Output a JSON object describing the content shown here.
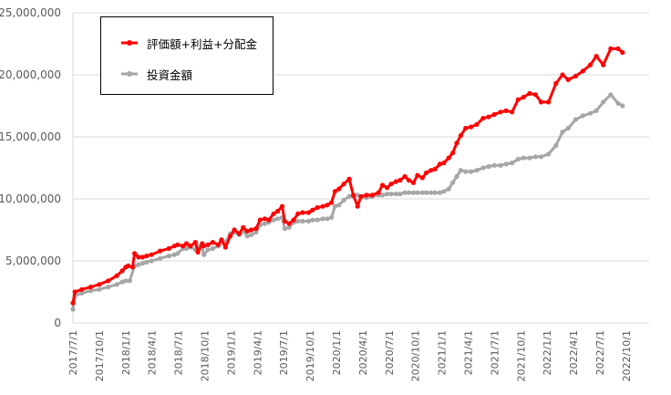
{
  "chart_data": {
    "type": "line",
    "title": "",
    "xlabel": "",
    "ylabel": "",
    "ylim": [
      0,
      25000000
    ],
    "ytick_labels": [
      "0",
      "5,000,000",
      "10,000,000",
      "15,000,000",
      "20,000,000",
      "25,000,000"
    ],
    "ytick_values": [
      0,
      5000000,
      10000000,
      15000000,
      20000000,
      25000000
    ],
    "xtick_labels": [
      "2017/7/1",
      "2017/10/1",
      "2018/1/1",
      "2018/4/1",
      "2018/7/1",
      "2018/10/1",
      "2019/1/1",
      "2019/4/1",
      "2019/7/1",
      "2019/10/1",
      "2020/1/1",
      "2020/4/1",
      "2020/7/1",
      "2020/10/1",
      "2021/1/1",
      "2021/4/1",
      "2021/7/1",
      "2021/10/1",
      "2022/1/1",
      "2022/4/1",
      "2022/7/1",
      "2022/10/1"
    ],
    "x_start": "2017-07-01",
    "x_end": "2023-01-01",
    "grid": true,
    "legend": "top-left",
    "series": [
      {
        "name": "評価額+利益+分配金",
        "color": "#ff0000",
        "points": [
          [
            "2017-07-01",
            1600000
          ],
          [
            "2017-07-08",
            2500000
          ],
          [
            "2017-08-01",
            2700000
          ],
          [
            "2017-09-01",
            2900000
          ],
          [
            "2017-10-01",
            3100000
          ],
          [
            "2017-11-01",
            3400000
          ],
          [
            "2017-12-01",
            3800000
          ],
          [
            "2017-12-20",
            4200000
          ],
          [
            "2018-01-01",
            4500000
          ],
          [
            "2018-01-10",
            4600000
          ],
          [
            "2018-01-25",
            4500000
          ],
          [
            "2018-02-01",
            5600000
          ],
          [
            "2018-02-15",
            5300000
          ],
          [
            "2018-03-01",
            5300000
          ],
          [
            "2018-03-15",
            5400000
          ],
          [
            "2018-04-01",
            5500000
          ],
          [
            "2018-05-01",
            5800000
          ],
          [
            "2018-06-01",
            6000000
          ],
          [
            "2018-06-20",
            6200000
          ],
          [
            "2018-07-01",
            6300000
          ],
          [
            "2018-07-20",
            6200000
          ],
          [
            "2018-08-01",
            6400000
          ],
          [
            "2018-08-15",
            6200000
          ],
          [
            "2018-09-01",
            6500000
          ],
          [
            "2018-09-10",
            5700000
          ],
          [
            "2018-09-25",
            6400000
          ],
          [
            "2018-10-01",
            6200000
          ],
          [
            "2018-10-15",
            6300000
          ],
          [
            "2018-11-01",
            6500000
          ],
          [
            "2018-11-20",
            6300000
          ],
          [
            "2018-12-01",
            6700000
          ],
          [
            "2018-12-15",
            6100000
          ],
          [
            "2019-01-01",
            7000000
          ],
          [
            "2019-01-15",
            7500000
          ],
          [
            "2019-02-01",
            7200000
          ],
          [
            "2019-02-15",
            7700000
          ],
          [
            "2019-03-01",
            7400000
          ],
          [
            "2019-03-15",
            7500000
          ],
          [
            "2019-04-01",
            7600000
          ],
          [
            "2019-04-15",
            8300000
          ],
          [
            "2019-05-01",
            8400000
          ],
          [
            "2019-05-15",
            8300000
          ],
          [
            "2019-06-01",
            8800000
          ],
          [
            "2019-06-15",
            9000000
          ],
          [
            "2019-07-01",
            9400000
          ],
          [
            "2019-07-10",
            8200000
          ],
          [
            "2019-07-25",
            8000000
          ],
          [
            "2019-08-10",
            8300000
          ],
          [
            "2019-08-25",
            8800000
          ],
          [
            "2019-09-10",
            8900000
          ],
          [
            "2019-10-01",
            8900000
          ],
          [
            "2019-10-15",
            9100000
          ],
          [
            "2019-11-01",
            9300000
          ],
          [
            "2019-11-20",
            9400000
          ],
          [
            "2019-12-05",
            9500000
          ],
          [
            "2019-12-20",
            9700000
          ],
          [
            "2020-01-01",
            10600000
          ],
          [
            "2020-01-15",
            10800000
          ],
          [
            "2020-02-01",
            11200000
          ],
          [
            "2020-02-20",
            11600000
          ],
          [
            "2020-03-05",
            10300000
          ],
          [
            "2020-03-20",
            9400000
          ],
          [
            "2020-04-01",
            10200000
          ],
          [
            "2020-04-20",
            10300000
          ],
          [
            "2020-05-10",
            10300000
          ],
          [
            "2020-06-01",
            10500000
          ],
          [
            "2020-06-15",
            11100000
          ],
          [
            "2020-07-01",
            10900000
          ],
          [
            "2020-07-15",
            11200000
          ],
          [
            "2020-08-01",
            11400000
          ],
          [
            "2020-08-15",
            11500000
          ],
          [
            "2020-09-01",
            11800000
          ],
          [
            "2020-09-15",
            11500000
          ],
          [
            "2020-10-01",
            11300000
          ],
          [
            "2020-10-15",
            11900000
          ],
          [
            "2020-11-01",
            11700000
          ],
          [
            "2020-11-15",
            12100000
          ],
          [
            "2020-12-01",
            12300000
          ],
          [
            "2020-12-15",
            12400000
          ],
          [
            "2021-01-01",
            12800000
          ],
          [
            "2021-01-15",
            12900000
          ],
          [
            "2021-02-01",
            13300000
          ],
          [
            "2021-02-15",
            13700000
          ],
          [
            "2021-03-01",
            14500000
          ],
          [
            "2021-03-15",
            15100000
          ],
          [
            "2021-04-01",
            15700000
          ],
          [
            "2021-04-20",
            15800000
          ],
          [
            "2021-05-10",
            16000000
          ],
          [
            "2021-06-01",
            16500000
          ],
          [
            "2021-06-20",
            16600000
          ],
          [
            "2021-07-10",
            16800000
          ],
          [
            "2021-08-01",
            17000000
          ],
          [
            "2021-08-20",
            17100000
          ],
          [
            "2021-09-10",
            17000000
          ],
          [
            "2021-10-01",
            18000000
          ],
          [
            "2021-10-20",
            18200000
          ],
          [
            "2021-11-10",
            18500000
          ],
          [
            "2021-12-01",
            18400000
          ],
          [
            "2021-12-20",
            17800000
          ],
          [
            "2022-01-15",
            17800000
          ],
          [
            "2022-02-10",
            19300000
          ],
          [
            "2022-03-05",
            20000000
          ],
          [
            "2022-03-25",
            19600000
          ],
          [
            "2022-04-20",
            19900000
          ],
          [
            "2022-05-15",
            20300000
          ],
          [
            "2022-06-10",
            20800000
          ],
          [
            "2022-07-01",
            21500000
          ],
          [
            "2022-07-25",
            20800000
          ],
          [
            "2022-08-20",
            22100000
          ],
          [
            "2022-09-15",
            22100000
          ],
          [
            "2022-09-30",
            21800000
          ]
        ]
      },
      {
        "name": "投資金額",
        "color": "#a6a6a6",
        "points": [
          [
            "2017-07-01",
            1100000
          ],
          [
            "2017-07-08",
            2200000
          ],
          [
            "2017-08-01",
            2400000
          ],
          [
            "2017-09-01",
            2600000
          ],
          [
            "2017-10-01",
            2700000
          ],
          [
            "2017-11-01",
            2900000
          ],
          [
            "2017-12-01",
            3100000
          ],
          [
            "2017-12-20",
            3300000
          ],
          [
            "2018-01-01",
            3400000
          ],
          [
            "2018-01-15",
            3400000
          ],
          [
            "2018-02-01",
            4600000
          ],
          [
            "2018-02-15",
            4700000
          ],
          [
            "2018-03-01",
            4800000
          ],
          [
            "2018-03-15",
            4900000
          ],
          [
            "2018-04-01",
            5000000
          ],
          [
            "2018-05-01",
            5200000
          ],
          [
            "2018-06-01",
            5400000
          ],
          [
            "2018-06-20",
            5500000
          ],
          [
            "2018-07-01",
            5600000
          ],
          [
            "2018-07-20",
            6000000
          ],
          [
            "2018-08-01",
            6000000
          ],
          [
            "2018-08-15",
            6100000
          ],
          [
            "2018-09-01",
            5900000
          ],
          [
            "2018-09-10",
            6200000
          ],
          [
            "2018-09-25",
            6000000
          ],
          [
            "2018-10-01",
            5500000
          ],
          [
            "2018-10-15",
            5900000
          ],
          [
            "2018-11-01",
            6000000
          ],
          [
            "2018-11-20",
            6200000
          ],
          [
            "2018-12-01",
            6700000
          ],
          [
            "2018-12-15",
            6500000
          ],
          [
            "2019-01-01",
            7200000
          ],
          [
            "2019-01-15",
            7300000
          ],
          [
            "2019-02-01",
            7100000
          ],
          [
            "2019-02-15",
            7400000
          ],
          [
            "2019-03-01",
            7000000
          ],
          [
            "2019-03-15",
            7100000
          ],
          [
            "2019-04-01",
            7300000
          ],
          [
            "2019-04-15",
            7900000
          ],
          [
            "2019-05-01",
            8000000
          ],
          [
            "2019-05-15",
            8100000
          ],
          [
            "2019-06-01",
            8300000
          ],
          [
            "2019-06-15",
            8400000
          ],
          [
            "2019-07-01",
            8500000
          ],
          [
            "2019-07-10",
            7600000
          ],
          [
            "2019-07-25",
            7700000
          ],
          [
            "2019-08-10",
            8100000
          ],
          [
            "2019-08-25",
            8200000
          ],
          [
            "2019-09-10",
            8200000
          ],
          [
            "2019-10-01",
            8200000
          ],
          [
            "2019-10-15",
            8300000
          ],
          [
            "2019-11-01",
            8300000
          ],
          [
            "2019-11-20",
            8400000
          ],
          [
            "2019-12-05",
            8400000
          ],
          [
            "2019-12-20",
            8500000
          ],
          [
            "2020-01-01",
            9400000
          ],
          [
            "2020-01-15",
            9500000
          ],
          [
            "2020-02-01",
            9900000
          ],
          [
            "2020-02-20",
            10200000
          ],
          [
            "2020-03-05",
            10200000
          ],
          [
            "2020-03-20",
            10300000
          ],
          [
            "2020-04-01",
            10100000
          ],
          [
            "2020-04-20",
            10100000
          ],
          [
            "2020-05-10",
            10200000
          ],
          [
            "2020-06-01",
            10300000
          ],
          [
            "2020-06-15",
            10300000
          ],
          [
            "2020-07-01",
            10400000
          ],
          [
            "2020-07-15",
            10400000
          ],
          [
            "2020-08-01",
            10400000
          ],
          [
            "2020-08-15",
            10400000
          ],
          [
            "2020-09-01",
            10500000
          ],
          [
            "2020-09-15",
            10500000
          ],
          [
            "2020-10-01",
            10500000
          ],
          [
            "2020-10-15",
            10500000
          ],
          [
            "2020-11-01",
            10500000
          ],
          [
            "2020-11-15",
            10500000
          ],
          [
            "2020-12-01",
            10500000
          ],
          [
            "2020-12-15",
            10500000
          ],
          [
            "2021-01-01",
            10500000
          ],
          [
            "2021-01-15",
            10600000
          ],
          [
            "2021-02-01",
            10800000
          ],
          [
            "2021-02-15",
            11300000
          ],
          [
            "2021-03-01",
            11800000
          ],
          [
            "2021-03-15",
            12300000
          ],
          [
            "2021-04-01",
            12200000
          ],
          [
            "2021-04-20",
            12200000
          ],
          [
            "2021-05-10",
            12300000
          ],
          [
            "2021-06-01",
            12500000
          ],
          [
            "2021-06-20",
            12600000
          ],
          [
            "2021-07-10",
            12700000
          ],
          [
            "2021-08-01",
            12700000
          ],
          [
            "2021-08-20",
            12800000
          ],
          [
            "2021-09-10",
            12900000
          ],
          [
            "2021-10-01",
            13200000
          ],
          [
            "2021-10-20",
            13300000
          ],
          [
            "2021-11-10",
            13300000
          ],
          [
            "2021-12-01",
            13400000
          ],
          [
            "2021-12-20",
            13400000
          ],
          [
            "2022-01-15",
            13600000
          ],
          [
            "2022-02-10",
            14300000
          ],
          [
            "2022-03-05",
            15400000
          ],
          [
            "2022-03-25",
            15700000
          ],
          [
            "2022-04-20",
            16400000
          ],
          [
            "2022-05-15",
            16700000
          ],
          [
            "2022-06-10",
            16900000
          ],
          [
            "2022-07-01",
            17100000
          ],
          [
            "2022-07-25",
            17800000
          ],
          [
            "2022-08-20",
            18400000
          ],
          [
            "2022-09-15",
            17700000
          ],
          [
            "2022-09-30",
            17500000
          ]
        ]
      }
    ]
  }
}
